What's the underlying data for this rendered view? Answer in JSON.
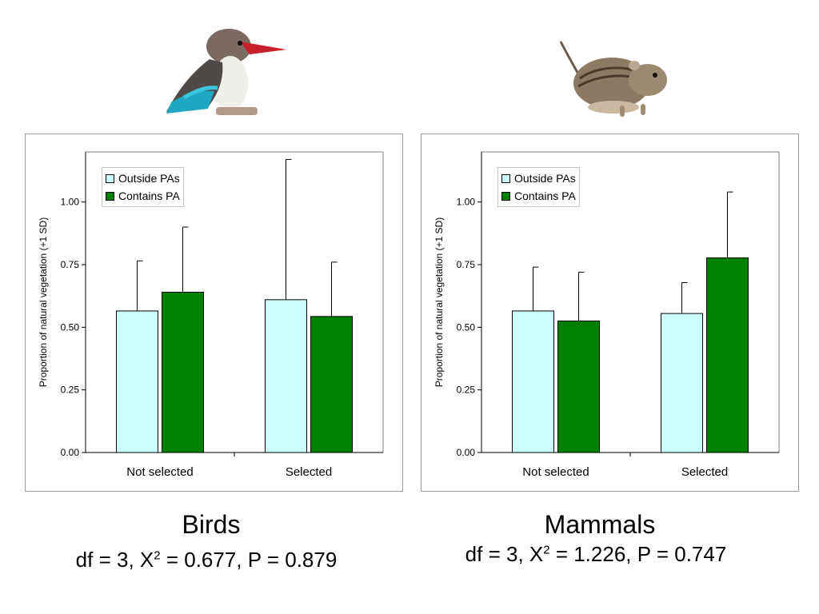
{
  "panels": [
    {
      "id": "birds",
      "picture": "kingfisher",
      "title": "Birds",
      "stats": {
        "df_label": "df = 3, X",
        "chi_exp": "2",
        "rest": " = 0.677, P = 0.879"
      },
      "chart_data": {
        "type": "bar",
        "ylabel": "Proportion of natural vegetation (+1 SD)",
        "ylim": [
          0,
          1.2
        ],
        "yticks": [
          "0.00",
          "0.25",
          "0.50",
          "0.75",
          "1.00"
        ],
        "categories": [
          "Not selected",
          "Selected"
        ],
        "legend_position": "top-left",
        "series": [
          {
            "name": "Outside PAs",
            "color": "#ccffff",
            "values": [
              0.565,
              0.61
            ],
            "sd": [
              0.2,
              0.56
            ]
          },
          {
            "name": "Contains PA",
            "color": "#008000",
            "values": [
              0.64,
              0.543
            ],
            "sd": [
              0.26,
              0.217
            ]
          }
        ]
      }
    },
    {
      "id": "mammals",
      "picture": "rodent",
      "title": "Mammals",
      "stats": {
        "df_label": "df = 3, X",
        "chi_exp": "2",
        "rest": " = 1.226, P = 0.747"
      },
      "chart_data": {
        "type": "bar",
        "ylabel": "Proportion of natural vegetation (+1 SD)",
        "ylim": [
          0,
          1.2
        ],
        "yticks": [
          "0.00",
          "0.25",
          "0.50",
          "0.75",
          "1.00"
        ],
        "categories": [
          "Not selected",
          "Selected"
        ],
        "legend_position": "top-left",
        "series": [
          {
            "name": "Outside PAs",
            "color": "#ccffff",
            "values": [
              0.565,
              0.555
            ],
            "sd": [
              0.175,
              0.123
            ]
          },
          {
            "name": "Contains PA",
            "color": "#008000",
            "values": [
              0.525,
              0.777
            ],
            "sd": [
              0.195,
              0.263
            ]
          }
        ]
      }
    }
  ]
}
